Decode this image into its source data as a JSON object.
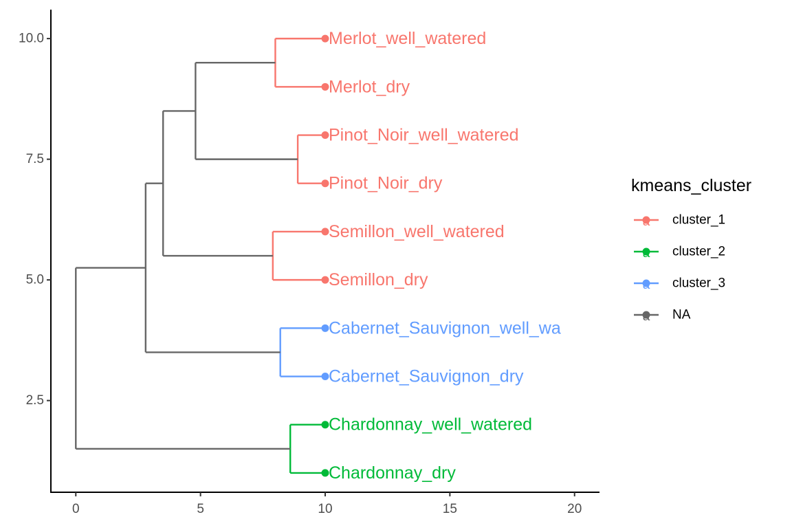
{
  "chart_data": {
    "type": "dendrogram",
    "title": "",
    "xlabel": "",
    "ylabel": "",
    "xlim": [
      -1,
      21
    ],
    "ylim": [
      0.6,
      10.6
    ],
    "x_ticks": [
      0,
      5,
      10,
      15,
      20
    ],
    "x_tick_labels": [
      "0",
      "5",
      "10",
      "15",
      "20"
    ],
    "y_ticks": [
      2.5,
      5.0,
      7.5,
      10.0
    ],
    "y_tick_labels": [
      "2.5",
      "5.0",
      "7.5",
      "10.0"
    ],
    "grid": false,
    "leaf_x": 10,
    "leaves": [
      {
        "label": "Merlot_well_watered",
        "y": 10,
        "cluster": "cluster_1"
      },
      {
        "label": "Merlot_dry",
        "y": 9,
        "cluster": "cluster_1"
      },
      {
        "label": "Pinot_Noir_well_watered",
        "y": 8,
        "cluster": "cluster_1"
      },
      {
        "label": "Pinot_Noir_dry",
        "y": 7,
        "cluster": "cluster_1"
      },
      {
        "label": "Semillon_well_watered",
        "y": 6,
        "cluster": "cluster_1"
      },
      {
        "label": "Semillon_dry",
        "y": 5,
        "cluster": "cluster_1"
      },
      {
        "label": "Cabernet_Sauvignon_well_wa",
        "y": 4,
        "cluster": "cluster_3"
      },
      {
        "label": "Cabernet_Sauvignon_dry",
        "y": 3,
        "cluster": "cluster_3"
      },
      {
        "label": "Chardonnay_well_watered",
        "y": 2,
        "cluster": "cluster_2"
      },
      {
        "label": "Chardonnay_dry",
        "y": 1,
        "cluster": "cluster_2"
      }
    ],
    "segments": [
      {
        "x1": 8.0,
        "y1": 10,
        "x2": 10,
        "y2": 10,
        "cluster": "cluster_1"
      },
      {
        "x1": 8.0,
        "y1": 9,
        "x2": 10,
        "y2": 9,
        "cluster": "cluster_1"
      },
      {
        "x1": 8.0,
        "y1": 9,
        "x2": 8.0,
        "y2": 10,
        "cluster": "cluster_1"
      },
      {
        "x1": 8.9,
        "y1": 8,
        "x2": 10,
        "y2": 8,
        "cluster": "cluster_1"
      },
      {
        "x1": 8.9,
        "y1": 7,
        "x2": 10,
        "y2": 7,
        "cluster": "cluster_1"
      },
      {
        "x1": 8.9,
        "y1": 7,
        "x2": 8.9,
        "y2": 8,
        "cluster": "cluster_1"
      },
      {
        "x1": 7.9,
        "y1": 6,
        "x2": 10,
        "y2": 6,
        "cluster": "cluster_1"
      },
      {
        "x1": 7.9,
        "y1": 5,
        "x2": 10,
        "y2": 5,
        "cluster": "cluster_1"
      },
      {
        "x1": 7.9,
        "y1": 5,
        "x2": 7.9,
        "y2": 6,
        "cluster": "cluster_1"
      },
      {
        "x1": 8.2,
        "y1": 4,
        "x2": 10,
        "y2": 4,
        "cluster": "cluster_3"
      },
      {
        "x1": 8.2,
        "y1": 3,
        "x2": 10,
        "y2": 3,
        "cluster": "cluster_3"
      },
      {
        "x1": 8.2,
        "y1": 3,
        "x2": 8.2,
        "y2": 4,
        "cluster": "cluster_3"
      },
      {
        "x1": 8.6,
        "y1": 2,
        "x2": 10,
        "y2": 2,
        "cluster": "cluster_2"
      },
      {
        "x1": 8.6,
        "y1": 1,
        "x2": 10,
        "y2": 1,
        "cluster": "cluster_2"
      },
      {
        "x1": 8.6,
        "y1": 1,
        "x2": 8.6,
        "y2": 2,
        "cluster": "cluster_2"
      },
      {
        "x1": 4.8,
        "y1": 9.5,
        "x2": 8.0,
        "y2": 9.5,
        "cluster": "NA"
      },
      {
        "x1": 4.8,
        "y1": 7.5,
        "x2": 8.9,
        "y2": 7.5,
        "cluster": "NA"
      },
      {
        "x1": 4.8,
        "y1": 7.5,
        "x2": 4.8,
        "y2": 9.5,
        "cluster": "NA"
      },
      {
        "x1": 3.5,
        "y1": 8.5,
        "x2": 4.8,
        "y2": 8.5,
        "cluster": "NA"
      },
      {
        "x1": 3.5,
        "y1": 5.5,
        "x2": 7.9,
        "y2": 5.5,
        "cluster": "NA"
      },
      {
        "x1": 3.5,
        "y1": 5.5,
        "x2": 3.5,
        "y2": 8.5,
        "cluster": "NA"
      },
      {
        "x1": 2.8,
        "y1": 7.0,
        "x2": 3.5,
        "y2": 7.0,
        "cluster": "NA"
      },
      {
        "x1": 2.8,
        "y1": 3.5,
        "x2": 8.2,
        "y2": 3.5,
        "cluster": "NA"
      },
      {
        "x1": 2.8,
        "y1": 3.5,
        "x2": 2.8,
        "y2": 7.0,
        "cluster": "NA"
      },
      {
        "x1": 0,
        "y1": 5.25,
        "x2": 2.8,
        "y2": 5.25,
        "cluster": "NA"
      },
      {
        "x1": 0,
        "y1": 1.5,
        "x2": 8.6,
        "y2": 1.5,
        "cluster": "NA"
      },
      {
        "x1": 0,
        "y1": 1.5,
        "x2": 0,
        "y2": 5.25,
        "cluster": "NA"
      }
    ],
    "legend": {
      "title": "kmeans_cluster",
      "position": "right",
      "key_glyph": "a",
      "entries": [
        {
          "name": "cluster_1",
          "color": "#F8766D"
        },
        {
          "name": "cluster_2",
          "color": "#00BA38"
        },
        {
          "name": "cluster_3",
          "color": "#619CFF"
        },
        {
          "name": "NA",
          "color": "#666666"
        }
      ]
    },
    "colors": {
      "cluster_1": "#F8766D",
      "cluster_2": "#00BA38",
      "cluster_3": "#619CFF",
      "NA": "#666666",
      "axis": "#000000",
      "tick_text": "#4d4d4d"
    }
  }
}
